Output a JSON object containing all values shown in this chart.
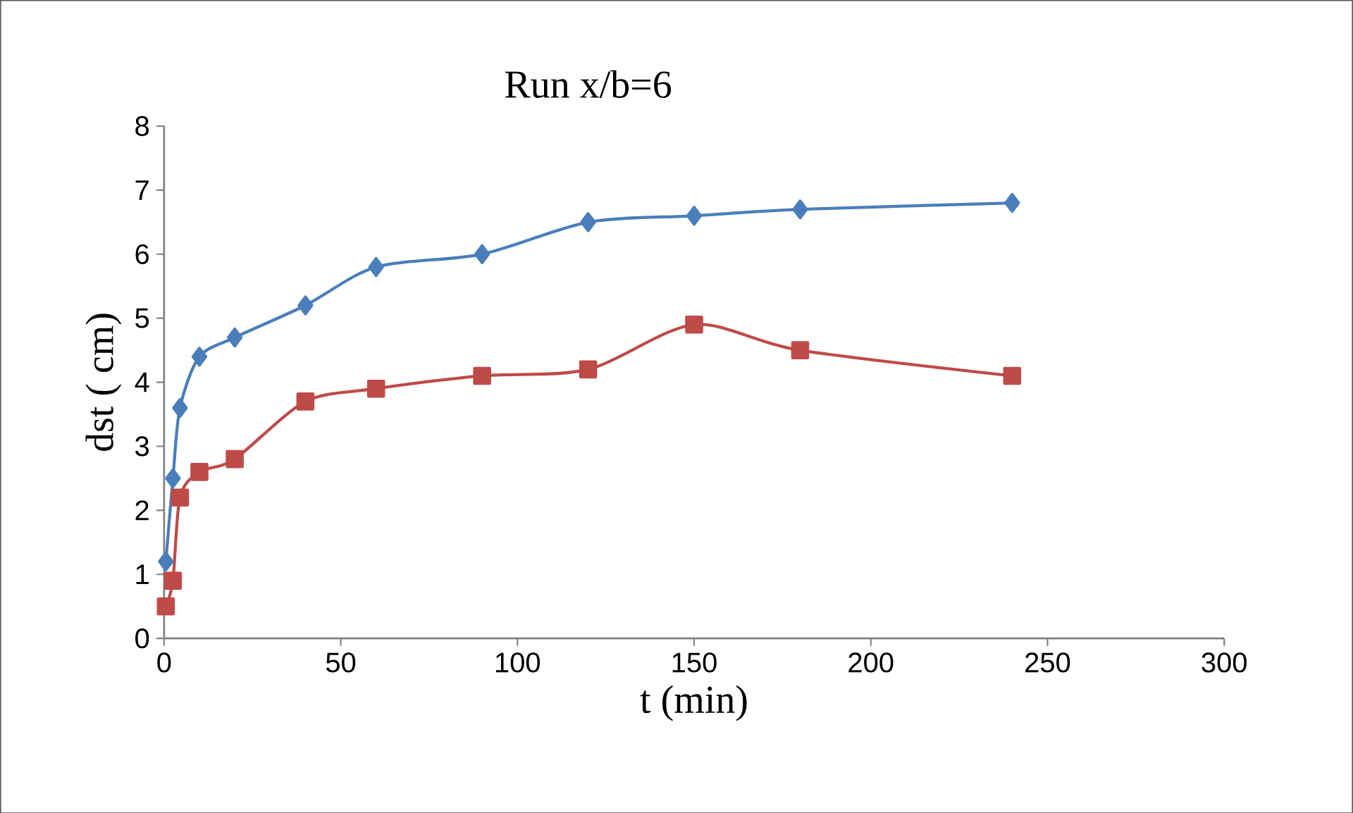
{
  "chart_data": {
    "type": "line",
    "title": "Run x/b=6",
    "xlabel": "t (min)",
    "ylabel": "dst ( cm)",
    "xlim": [
      0,
      300
    ],
    "xticks": [
      0,
      50,
      100,
      150,
      200,
      250,
      300
    ],
    "ylim": [
      0,
      8
    ],
    "yticks": [
      0,
      1,
      2,
      3,
      4,
      5,
      6,
      7,
      8
    ],
    "grid": false,
    "series": [
      {
        "color": "#4a7ebb",
        "marker": "diamond",
        "x": [
          0.5,
          2.5,
          4.5,
          10,
          20,
          40,
          60,
          90,
          120,
          150,
          180,
          240
        ],
        "values": [
          1.2,
          2.5,
          3.6,
          4.4,
          4.7,
          5.2,
          5.8,
          6.0,
          6.5,
          6.6,
          6.7,
          6.8
        ]
      },
      {
        "color": "#be4b48",
        "marker": "square",
        "x": [
          0.5,
          2.5,
          4.5,
          10,
          20,
          40,
          60,
          90,
          120,
          150,
          180,
          240
        ],
        "values": [
          0.5,
          0.9,
          2.2,
          2.6,
          2.8,
          3.7,
          3.9,
          4.1,
          4.2,
          4.9,
          4.5,
          4.1
        ]
      }
    ]
  }
}
